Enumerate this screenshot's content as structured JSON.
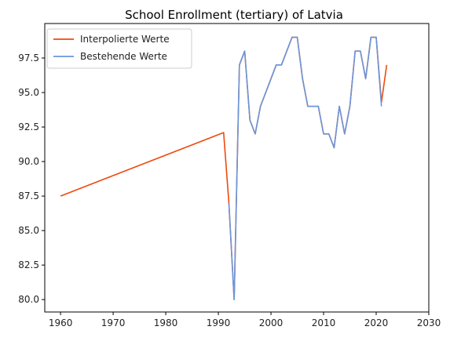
{
  "chart_data": {
    "type": "line",
    "title": "School Enrollment (tertiary) of Latvia",
    "xlabel": "",
    "ylabel": "",
    "xlim": [
      1957,
      2030
    ],
    "ylim": [
      79.1,
      100.0
    ],
    "xticks": [
      1960,
      1970,
      1980,
      1990,
      2000,
      2010,
      2020,
      2030
    ],
    "yticks": [
      80.0,
      82.5,
      85.0,
      87.5,
      90.0,
      92.5,
      95.0,
      97.5
    ],
    "ytick_labels": [
      "80.0",
      "82.5",
      "85.0",
      "87.5",
      "90.0",
      "92.5",
      "95.0",
      "97.5"
    ],
    "grid": false,
    "legend_position": "top-left",
    "series": [
      {
        "name": "Interpolierte Werte",
        "color": "#ee4a0e",
        "x": [
          1960,
          1991,
          1992,
          1993,
          1994,
          1995,
          1996,
          1997,
          1998,
          1999,
          2000,
          2001,
          2002,
          2003,
          2004,
          2005,
          2006,
          2007,
          2008,
          2009,
          2010,
          2011,
          2012,
          2013,
          2014,
          2015,
          2016,
          2017,
          2018,
          2019,
          2020,
          2021,
          2022
        ],
        "y": [
          87.5,
          92.1,
          87.0,
          80.0,
          97.0,
          98.0,
          93.0,
          92.0,
          94.0,
          95.0,
          96.0,
          97.0,
          97.0,
          98.0,
          99.0,
          99.0,
          96.0,
          94.0,
          94.0,
          94.0,
          92.0,
          92.0,
          91.0,
          94.0,
          92.0,
          94.0,
          98.0,
          98.0,
          96.0,
          99.0,
          99.0,
          94.3,
          97.0
        ]
      },
      {
        "name": "Bestehende Werte",
        "color": "#6a96dc",
        "x": [
          1992,
          1993,
          1994,
          1995,
          1996,
          1997,
          1998,
          1999,
          2000,
          2001,
          2002,
          2003,
          2004,
          2005,
          2006,
          2007,
          2008,
          2009,
          2010,
          2011,
          2012,
          2013,
          2014,
          2015,
          2016,
          2017,
          2018,
          2019,
          2020,
          2021
        ],
        "y": [
          87.0,
          80.0,
          97.0,
          98.0,
          93.0,
          92.0,
          94.0,
          95.0,
          96.0,
          97.0,
          97.0,
          98.0,
          99.0,
          99.0,
          96.0,
          94.0,
          94.0,
          94.0,
          92.0,
          92.0,
          91.0,
          94.0,
          92.0,
          94.0,
          98.0,
          98.0,
          96.0,
          99.0,
          99.0,
          94.0
        ]
      }
    ]
  }
}
